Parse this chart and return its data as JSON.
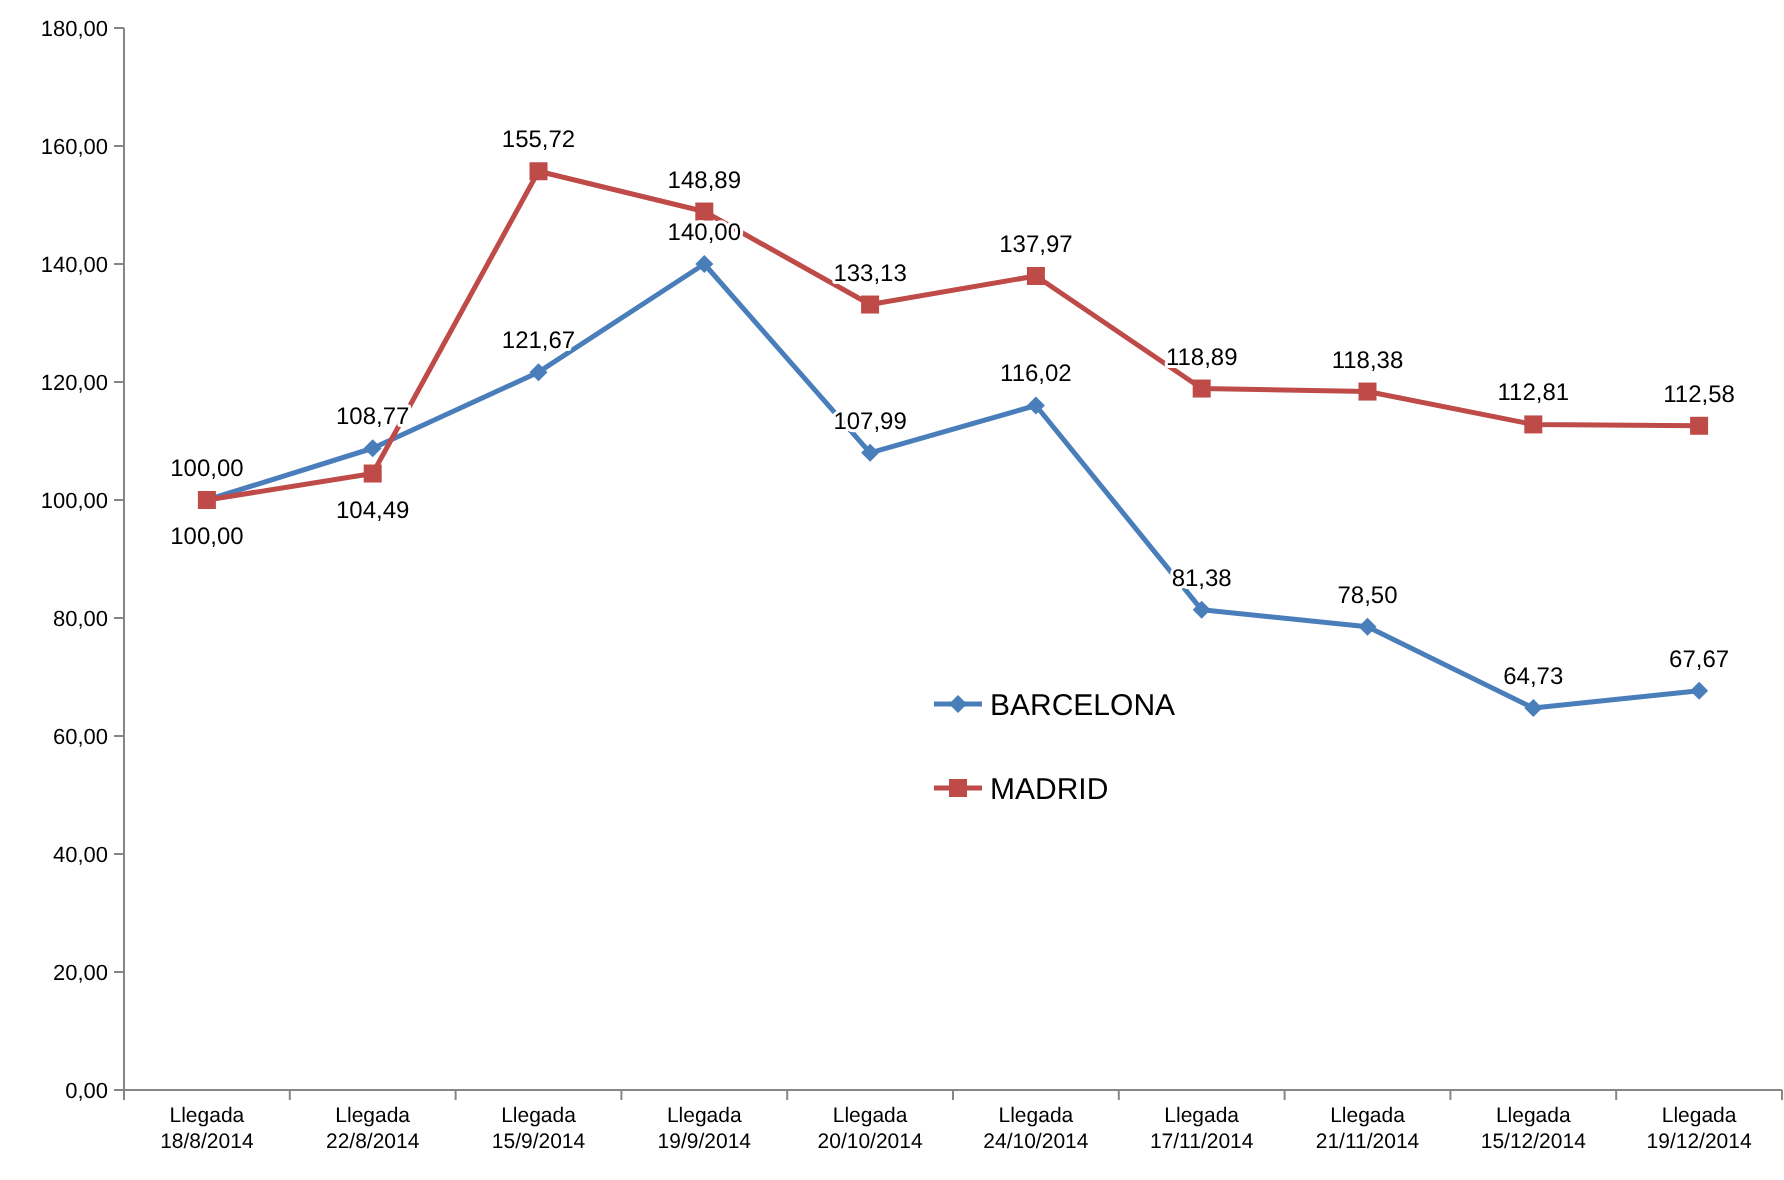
{
  "chart_data": {
    "type": "line",
    "categories": [
      "Llegada\n18/8/2014",
      "Llegada\n22/8/2014",
      "Llegada\n15/9/2014",
      "Llegada\n19/9/2014",
      "Llegada\n20/10/2014",
      "Llegada\n24/10/2014",
      "Llegada\n17/11/2014",
      "Llegada\n21/11/2014",
      "Llegada\n15/12/2014",
      "Llegada\n19/12/2014"
    ],
    "series": [
      {
        "name": "BARCELONA",
        "color": "#4a7ebb",
        "marker": "diamond",
        "values": [
          100,
          108.77,
          121.67,
          140.0,
          107.99,
          116.02,
          81.38,
          78.5,
          64.73,
          67.67
        ],
        "value_labels": [
          "100,00",
          "108,77",
          "121,67",
          "140,00",
          "107,99",
          "116,02",
          "81,38",
          "78,50",
          "64,73",
          "67,67"
        ]
      },
      {
        "name": "MADRID",
        "color": "#be4b48",
        "marker": "square",
        "values": [
          100,
          104.49,
          155.72,
          148.89,
          133.13,
          137.97,
          118.89,
          118.38,
          112.81,
          112.58
        ],
        "value_labels": [
          "100,00",
          "104,49",
          "155,72",
          "148,89",
          "133,13",
          "137,97",
          "118,89",
          "118,38",
          "112,81",
          "112,58"
        ]
      }
    ],
    "ylim": [
      0,
      180
    ],
    "yticks": [
      {
        "value": 0,
        "label": "0,00"
      },
      {
        "value": 20,
        "label": "20,00"
      },
      {
        "value": 40,
        "label": "40,00"
      },
      {
        "value": 60,
        "label": "60,00"
      },
      {
        "value": 80,
        "label": "80,00"
      },
      {
        "value": 100,
        "label": "100,00"
      },
      {
        "value": 120,
        "label": "120,00"
      },
      {
        "value": 140,
        "label": "140,00"
      },
      {
        "value": 160,
        "label": "160,00"
      },
      {
        "value": 180,
        "label": "180,00"
      }
    ],
    "grid": false,
    "legend": "center",
    "line_style": "solid"
  }
}
